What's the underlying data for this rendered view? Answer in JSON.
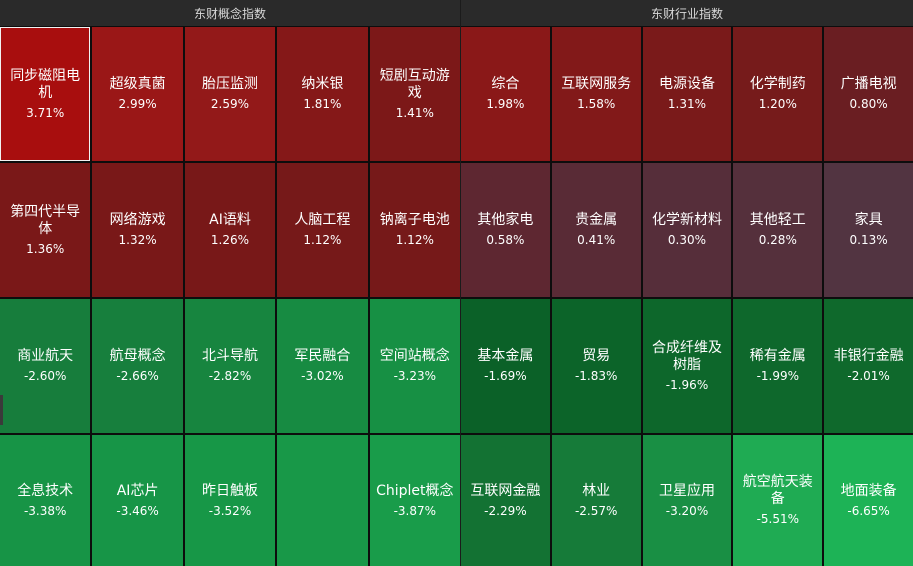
{
  "panels": [
    {
      "title": "东财概念指数",
      "tiles": [
        {
          "name": "同步磁阻电机",
          "pct": "3.71%",
          "color": "#a80e0e",
          "selected": true
        },
        {
          "name": "超级真菌",
          "pct": "2.99%",
          "color": "#9a1717"
        },
        {
          "name": "胎压监测",
          "pct": "2.59%",
          "color": "#931919"
        },
        {
          "name": "纳米银",
          "pct": "1.81%",
          "color": "#851818"
        },
        {
          "name": "短剧互动游戏",
          "pct": "1.41%",
          "color": "#7c1818"
        },
        {
          "name": "第四代半导体",
          "pct": "1.36%",
          "color": "#7a1818"
        },
        {
          "name": "网络游戏",
          "pct": "1.32%",
          "color": "#791818"
        },
        {
          "name": "AI语料",
          "pct": "1.26%",
          "color": "#781818"
        },
        {
          "name": "人脑工程",
          "pct": "1.12%",
          "color": "#761919"
        },
        {
          "name": "钠离子电池",
          "pct": "1.12%",
          "color": "#761919"
        },
        {
          "name": "商业航天",
          "pct": "-2.60%",
          "color": "#177d3c"
        },
        {
          "name": "航母概念",
          "pct": "-2.66%",
          "color": "#177f3d"
        },
        {
          "name": "北斗导航",
          "pct": "-2.82%",
          "color": "#17853f"
        },
        {
          "name": "军民融合",
          "pct": "-3.02%",
          "color": "#178b42"
        },
        {
          "name": "空间站概念",
          "pct": "-3.23%",
          "color": "#179044"
        },
        {
          "name": "全息技术",
          "pct": "-3.38%",
          "color": "#179446"
        },
        {
          "name": "AI芯片",
          "pct": "-3.46%",
          "color": "#179547"
        },
        {
          "name": "昨日触板",
          "pct": "-3.52%",
          "color": "#179747"
        },
        {
          "name": "",
          "pct": "",
          "color": "#189848"
        },
        {
          "name": "Chiplet概念",
          "pct": "-3.87%",
          "color": "#199c4a"
        }
      ]
    },
    {
      "title": "东财行业指数",
      "tiles": [
        {
          "name": "综合",
          "pct": "1.98%",
          "color": "#8a1818"
        },
        {
          "name": "互联网服务",
          "pct": "1.58%",
          "color": "#821919"
        },
        {
          "name": "电源设备",
          "pct": "1.31%",
          "color": "#7a1a1a"
        },
        {
          "name": "化学制药",
          "pct": "1.20%",
          "color": "#761b1b"
        },
        {
          "name": "广播电视",
          "pct": "0.80%",
          "color": "#6a1e22"
        },
        {
          "name": "其他家电",
          "pct": "0.58%",
          "color": "#5e2731"
        },
        {
          "name": "贵金属",
          "pct": "0.41%",
          "color": "#592b36"
        },
        {
          "name": "化学新材料",
          "pct": "0.30%",
          "color": "#562e3a"
        },
        {
          "name": "其他轻工",
          "pct": "0.28%",
          "color": "#55303c"
        },
        {
          "name": "家具",
          "pct": "0.13%",
          "color": "#523441"
        },
        {
          "name": "基本金属",
          "pct": "-1.69%",
          "color": "#0b6128"
        },
        {
          "name": "贸易",
          "pct": "-1.83%",
          "color": "#0c6429"
        },
        {
          "name": "合成纤维及树脂",
          "pct": "-1.96%",
          "color": "#0d672b"
        },
        {
          "name": "稀有金属",
          "pct": "-1.99%",
          "color": "#0e682c"
        },
        {
          "name": "非银行金融",
          "pct": "-2.01%",
          "color": "#0f692c"
        },
        {
          "name": "互联网金融",
          "pct": "-2.29%",
          "color": "#137233"
        },
        {
          "name": "林业",
          "pct": "-2.57%",
          "color": "#167b39"
        },
        {
          "name": "卫星应用",
          "pct": "-3.20%",
          "color": "#198f44"
        },
        {
          "name": "航空航天装备",
          "pct": "-5.51%",
          "color": "#1fab53"
        },
        {
          "name": "地面装备",
          "pct": "-6.65%",
          "color": "#1db356"
        }
      ]
    }
  ]
}
